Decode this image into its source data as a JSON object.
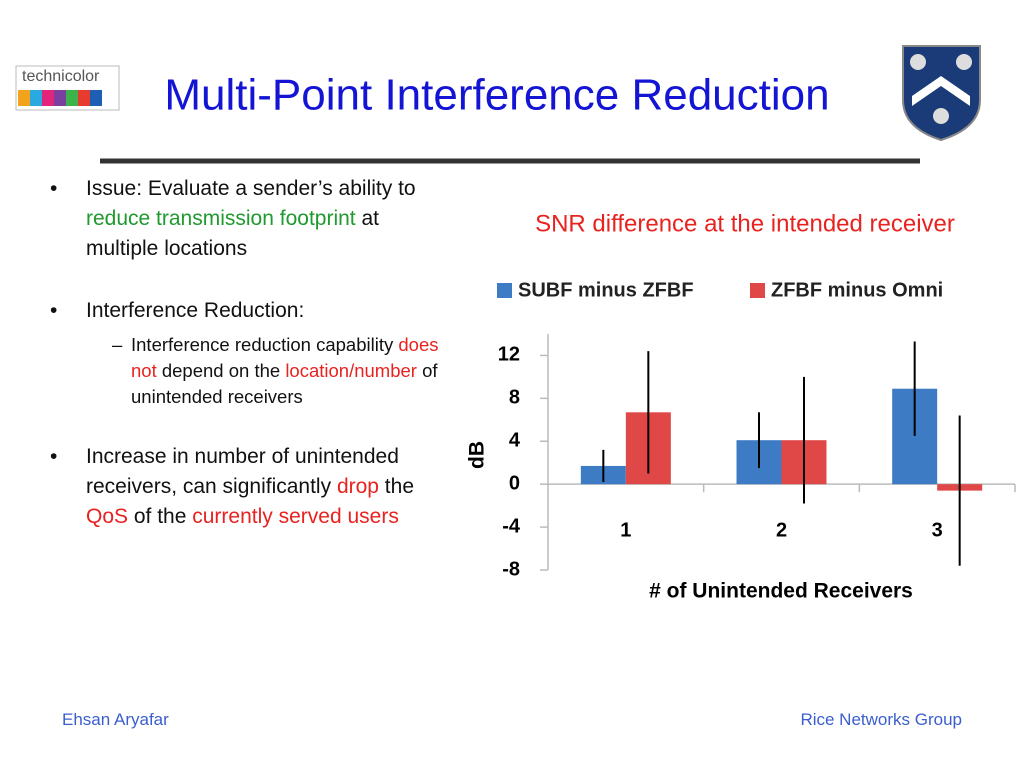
{
  "slide": {
    "logo_text": "technicolor",
    "title": "Multi-Point Interference Reduction",
    "bullets": [
      {
        "parts": [
          {
            "text": "Issue: Evaluate a sender’s ability to "
          },
          {
            "text": "reduce transmission footprint",
            "color": "#1f9a2e"
          },
          {
            "text": " at multiple locations"
          }
        ]
      },
      {
        "parts": [
          {
            "text": "Interference Reduction:"
          }
        ],
        "sub": [
          {
            "parts": [
              {
                "text": "Interference reduction capability "
              },
              {
                "text": "does not",
                "color": "#e8231f"
              },
              {
                "text": " depend on the "
              },
              {
                "text": "location/number",
                "color": "#e8231f"
              },
              {
                "text": " of unintended receivers"
              }
            ]
          }
        ]
      },
      {
        "parts": [
          {
            "text": "Increase in number of unintended receivers, can significantly "
          },
          {
            "text": "drop",
            "color": "#e8231f"
          },
          {
            "text": " the "
          },
          {
            "text": "QoS",
            "color": "#e8231f"
          },
          {
            "text": " of the "
          },
          {
            "text": "currently served users",
            "color": "#e8231f"
          }
        ]
      }
    ],
    "footer_left": "Ehsan Aryafar",
    "footer_right": "Rice Networks Group"
  },
  "chart_data": {
    "type": "bar",
    "title": "SNR difference at the intended receiver",
    "categories": [
      "1",
      "2",
      "3"
    ],
    "series": [
      {
        "name": "SUBF minus ZFBF",
        "color": "#3d7cc4",
        "values": [
          1.7,
          4.1,
          8.9
        ],
        "errors": [
          1.5,
          2.6,
          4.4
        ]
      },
      {
        "name": "ZFBF minus Omni",
        "color": "#e04848",
        "values": [
          6.7,
          4.1,
          -0.6
        ],
        "errors": [
          5.7,
          5.9,
          7.0
        ]
      }
    ],
    "ylim": [
      -8,
      14
    ],
    "yticks": [
      -8,
      -4,
      0,
      4,
      8,
      12
    ],
    "ylabel": "dB",
    "xlabel": "# of Unintended Receivers",
    "legend": "top"
  }
}
